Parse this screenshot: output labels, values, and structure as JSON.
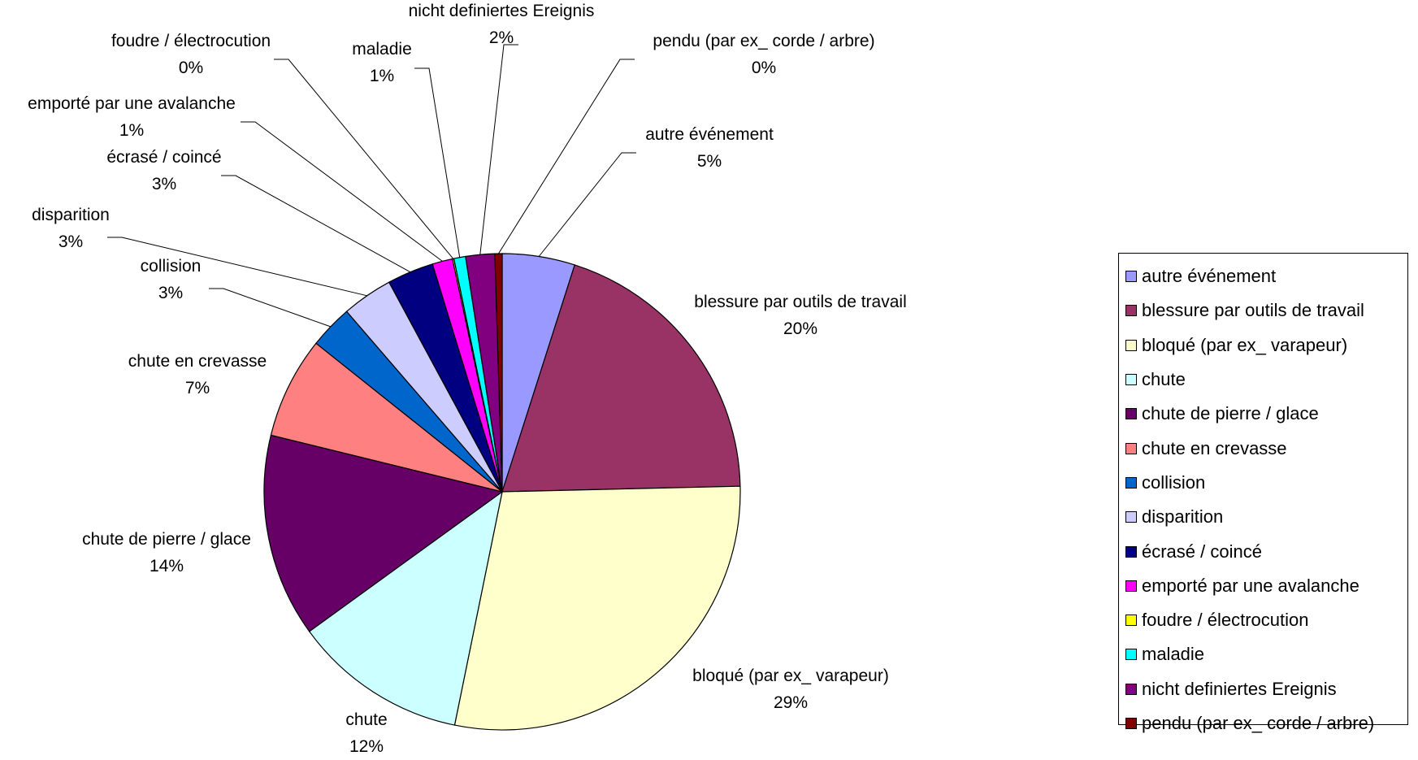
{
  "chart_data": {
    "type": "pie",
    "legend": "right",
    "slices": [
      {
        "label": "autre événement",
        "value": 5,
        "percent_label": "5%",
        "color": "#9999FF"
      },
      {
        "label": "blessure par outils de travail",
        "value": 20,
        "percent_label": "20%",
        "color": "#993366"
      },
      {
        "label": "bloqué (par ex_ varapeur)",
        "value": 29,
        "percent_label": "29%",
        "color": "#FFFFCC"
      },
      {
        "label": "chute",
        "value": 12,
        "percent_label": "12%",
        "color": "#CCFFFF"
      },
      {
        "label": "chute de pierre / glace",
        "value": 14,
        "percent_label": "14%",
        "color": "#660066"
      },
      {
        "label": "chute en crevasse",
        "value": 7,
        "percent_label": "7%",
        "color": "#FF8080"
      },
      {
        "label": "collision",
        "value": 3,
        "percent_label": "3%",
        "color": "#0066CC"
      },
      {
        "label": "disparition",
        "value": 3.5,
        "percent_label": "3%",
        "color": "#CCCCFF"
      },
      {
        "label": "écrasé / coincé",
        "value": 3.2,
        "percent_label": "3%",
        "color": "#000080"
      },
      {
        "label": "emporté par une avalanche",
        "value": 1.4,
        "percent_label": "1%",
        "color": "#FF00FF"
      },
      {
        "label": "foudre / électrocution",
        "value": 0.1,
        "percent_label": "0%",
        "color": "#FFFF00"
      },
      {
        "label": "maladie",
        "value": 0.8,
        "percent_label": "1%",
        "color": "#00FFFF"
      },
      {
        "label": "nicht definiertes Ereignis",
        "value": 2,
        "percent_label": "2%",
        "color": "#800080"
      },
      {
        "label": "pendu (par ex_ corde / arbre)",
        "value": 0.5,
        "percent_label": "0%",
        "color": "#800000"
      }
    ]
  }
}
